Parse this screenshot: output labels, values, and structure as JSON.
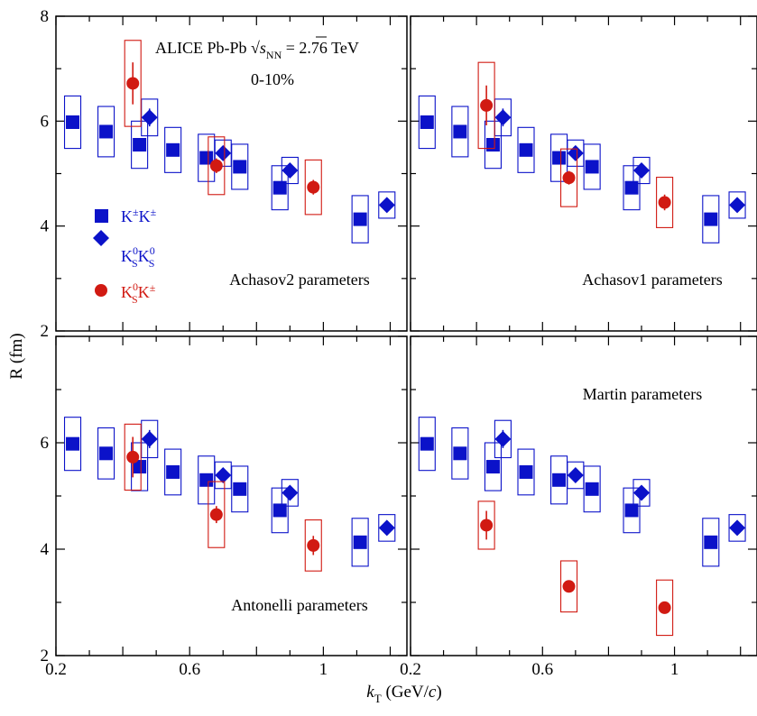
{
  "figure": {
    "y_axis_label": "R (fm)",
    "x_axis_label_main": "k",
    "x_axis_label_sub": "T",
    "x_axis_label_unit": " (GeV/",
    "x_axis_label_c": "c",
    "x_axis_label_close": ")",
    "header_line1_a": "ALICE Pb-Pb ",
    "header_sqrt": "√",
    "header_s": "s",
    "header_nn": "NN",
    "header_line1_b": " = 2.76 TeV",
    "header_line2": "0-10%",
    "legend": [
      {
        "main": "K",
        "sup1": "±",
        "main2": "K",
        "sup2": "±",
        "sub1": "",
        "sub2": "",
        "marker": "square",
        "color": "#0b12c9"
      },
      {
        "main": "K",
        "sup1": "0",
        "main2": "K",
        "sup2": "0",
        "sub1": "S",
        "sub2": "S",
        "marker": "diamond",
        "color": "#0b12c9"
      },
      {
        "main": "K",
        "sup1": "0",
        "main2": "K",
        "sup2": "±",
        "sub1": "S",
        "sub2": "",
        "marker": "circle",
        "color": "#d11a12"
      }
    ],
    "colors": {
      "blue": "#0b12c9",
      "red": "#d11a12"
    }
  },
  "chart_data": [
    {
      "type": "scatter",
      "panel": "top-left",
      "title": "Achasov2 parameters",
      "xlim": [
        0.2,
        1.25
      ],
      "ylim": [
        2,
        8
      ],
      "xticks": [
        0.2,
        0.6,
        1
      ],
      "yticks": [
        2,
        4,
        6,
        8
      ],
      "series": [
        {
          "name": "K±K±",
          "marker": "square",
          "x": [
            0.25,
            0.35,
            0.45,
            0.55,
            0.65,
            0.75,
            0.87,
            1.11
          ],
          "y": [
            5.98,
            5.8,
            5.55,
            5.45,
            5.3,
            5.13,
            4.73,
            4.13
          ],
          "yerr_sys": [
            0.5,
            0.48,
            0.45,
            0.43,
            0.45,
            0.43,
            0.42,
            0.45
          ],
          "yerr_stat": [
            0.08,
            0.08,
            0.07,
            0.07,
            0.07,
            0.07,
            0.07,
            0.08
          ]
        },
        {
          "name": "K0sK0s",
          "marker": "diamond",
          "x": [
            0.48,
            0.7,
            0.9,
            1.19
          ],
          "y": [
            6.07,
            5.39,
            5.06,
            4.4
          ],
          "yerr_sys": [
            0.35,
            0.25,
            0.25,
            0.25
          ],
          "yerr_stat": [
            0.17,
            0.1,
            0.09,
            0.08
          ]
        },
        {
          "name": "K0sK±",
          "marker": "circle",
          "x": [
            0.43,
            0.68,
            0.97
          ],
          "y": [
            6.72,
            5.15,
            4.74
          ],
          "yerr_sys": [
            0.82,
            0.55,
            0.52
          ],
          "yerr_stat": [
            0.4,
            0.14,
            0.14
          ]
        }
      ]
    },
    {
      "type": "scatter",
      "panel": "top-right",
      "title": "Achasov1 parameters",
      "xlim": [
        0.2,
        1.25
      ],
      "ylim": [
        2,
        8
      ],
      "xticks": [],
      "yticks": [
        2,
        4,
        6,
        8
      ],
      "series": [
        {
          "name": "K±K±",
          "marker": "square",
          "x": [
            0.25,
            0.35,
            0.45,
            0.55,
            0.65,
            0.75,
            0.87,
            1.11
          ],
          "y": [
            5.98,
            5.8,
            5.55,
            5.45,
            5.3,
            5.13,
            4.73,
            4.13
          ],
          "yerr_sys": [
            0.5,
            0.48,
            0.45,
            0.43,
            0.45,
            0.43,
            0.42,
            0.45
          ],
          "yerr_stat": [
            0.08,
            0.08,
            0.07,
            0.07,
            0.07,
            0.07,
            0.07,
            0.08
          ]
        },
        {
          "name": "K0sK0s",
          "marker": "diamond",
          "x": [
            0.48,
            0.7,
            0.9,
            1.19
          ],
          "y": [
            6.07,
            5.39,
            5.06,
            4.4
          ],
          "yerr_sys": [
            0.35,
            0.25,
            0.25,
            0.25
          ],
          "yerr_stat": [
            0.17,
            0.1,
            0.09,
            0.08
          ]
        },
        {
          "name": "K0sK±",
          "marker": "circle",
          "x": [
            0.43,
            0.68,
            0.97
          ],
          "y": [
            6.3,
            4.92,
            4.45
          ],
          "yerr_sys": [
            0.82,
            0.55,
            0.48
          ],
          "yerr_stat": [
            0.38,
            0.13,
            0.15
          ]
        }
      ]
    },
    {
      "type": "scatter",
      "panel": "bottom-left",
      "title": "Antonelli parameters",
      "xlim": [
        0.2,
        1.25
      ],
      "ylim": [
        2,
        8
      ],
      "xticks": [
        0.2,
        0.6,
        1
      ],
      "yticks": [
        2,
        4,
        6,
        8
      ],
      "series": [
        {
          "name": "K±K±",
          "marker": "square",
          "x": [
            0.25,
            0.35,
            0.45,
            0.55,
            0.65,
            0.75,
            0.87,
            1.11
          ],
          "y": [
            5.98,
            5.8,
            5.55,
            5.45,
            5.3,
            5.13,
            4.73,
            4.13
          ],
          "yerr_sys": [
            0.5,
            0.48,
            0.45,
            0.43,
            0.45,
            0.43,
            0.42,
            0.45
          ],
          "yerr_stat": [
            0.08,
            0.08,
            0.07,
            0.07,
            0.07,
            0.07,
            0.07,
            0.08
          ]
        },
        {
          "name": "K0sK0s",
          "marker": "diamond",
          "x": [
            0.48,
            0.7,
            0.9,
            1.19
          ],
          "y": [
            6.07,
            5.39,
            5.06,
            4.4
          ],
          "yerr_sys": [
            0.35,
            0.25,
            0.25,
            0.25
          ],
          "yerr_stat": [
            0.17,
            0.1,
            0.09,
            0.08
          ]
        },
        {
          "name": "K0sK±",
          "marker": "circle",
          "x": [
            0.43,
            0.68,
            0.97
          ],
          "y": [
            5.73,
            4.65,
            4.07
          ],
          "yerr_sys": [
            0.62,
            0.62,
            0.48
          ],
          "yerr_stat": [
            0.38,
            0.16,
            0.18
          ]
        }
      ]
    },
    {
      "type": "scatter",
      "panel": "bottom-right",
      "title": "Martin parameters",
      "xlim": [
        0.2,
        1.25
      ],
      "ylim": [
        2,
        8
      ],
      "xticks": [
        0.2,
        0.6,
        1
      ],
      "yticks": [
        2,
        4,
        6,
        8
      ],
      "series": [
        {
          "name": "K±K±",
          "marker": "square",
          "x": [
            0.25,
            0.35,
            0.45,
            0.55,
            0.65,
            0.75,
            0.87,
            1.11
          ],
          "y": [
            5.98,
            5.8,
            5.55,
            5.45,
            5.3,
            5.13,
            4.73,
            4.13
          ],
          "yerr_sys": [
            0.5,
            0.48,
            0.45,
            0.43,
            0.45,
            0.43,
            0.42,
            0.45
          ],
          "yerr_stat": [
            0.08,
            0.08,
            0.07,
            0.07,
            0.07,
            0.07,
            0.07,
            0.08
          ]
        },
        {
          "name": "K0sK0s",
          "marker": "diamond",
          "x": [
            0.48,
            0.7,
            0.9,
            1.19
          ],
          "y": [
            6.07,
            5.39,
            5.06,
            4.4
          ],
          "yerr_sys": [
            0.35,
            0.25,
            0.25,
            0.25
          ],
          "yerr_stat": [
            0.17,
            0.1,
            0.09,
            0.08
          ]
        },
        {
          "name": "K0sK±",
          "marker": "circle",
          "x": [
            0.43,
            0.68,
            0.97
          ],
          "y": [
            4.45,
            3.3,
            2.9
          ],
          "yerr_sys": [
            0.45,
            0.48,
            0.52
          ],
          "yerr_stat": [
            0.27,
            0.1,
            0.1
          ]
        }
      ]
    }
  ]
}
